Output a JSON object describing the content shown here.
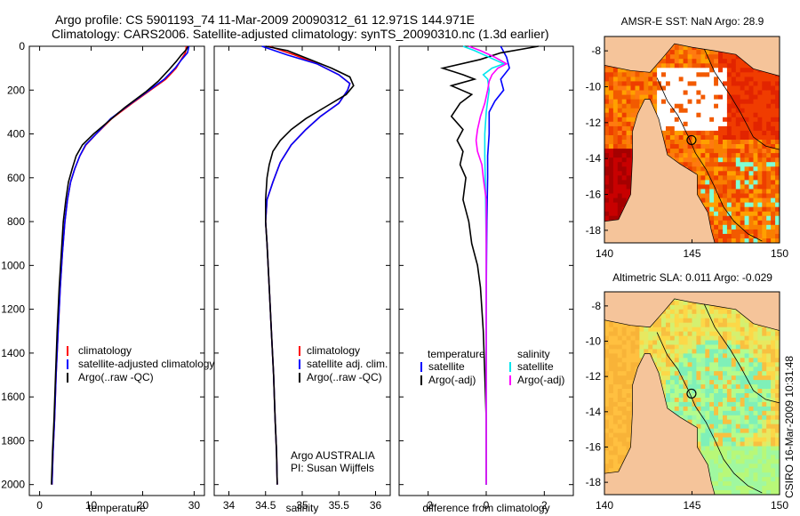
{
  "title_line1": "Argo profile: CS 5901193_74 11-Mar-2009 20090312_61 12.971S 144.971E",
  "title_line2": "Climatology: CARS2006. Satellite-adjusted climatology: synTS_20090310.nc (1.3d earlier)",
  "footer_vertical": "CSIRO 16-Mar-2009 10:31:48",
  "colors": {
    "climatology": "#ff0000",
    "satellite": "#0000ff",
    "argo": "#000000",
    "cyan": "#00e5ee",
    "magenta": "#ff00ff",
    "land": "#f5c49a"
  },
  "chart_data": [
    {
      "id": "temp",
      "type": "line",
      "xlabel": "temperature",
      "xlim": [
        -2,
        32
      ],
      "xticks": [
        0,
        10,
        20,
        30
      ],
      "ylim": [
        0,
        2050
      ],
      "yticks": [
        0,
        200,
        400,
        600,
        800,
        1000,
        1200,
        1400,
        1600,
        1800,
        2000
      ],
      "legend": {
        "position": "lower-left",
        "entries": [
          "climatology",
          "satellite-adjusted climatology",
          "Argo(..raw -QC)"
        ]
      },
      "series": [
        {
          "name": "climatology",
          "color": "#ff0000",
          "points": [
            [
              28.5,
              0
            ],
            [
              28.3,
              30
            ],
            [
              27.5,
              60
            ],
            [
              26.5,
              100
            ],
            [
              24.5,
              150
            ],
            [
              21.5,
              200
            ],
            [
              18,
              260
            ],
            [
              14,
              330
            ],
            [
              11,
              400
            ],
            [
              9,
              450
            ],
            [
              7.8,
              500
            ],
            [
              6.8,
              560
            ],
            [
              6,
              620
            ],
            [
              5.4,
              700
            ],
            [
              4.9,
              800
            ],
            [
              4.4,
              950
            ],
            [
              4,
              1100
            ],
            [
              3.6,
              1300
            ],
            [
              3.2,
              1500
            ],
            [
              2.9,
              1700
            ],
            [
              2.6,
              1850
            ],
            [
              2.4,
              2000
            ]
          ]
        },
        {
          "name": "satellite-adjusted climatology",
          "color": "#0000ff",
          "points": [
            [
              29,
              0
            ],
            [
              28.7,
              30
            ],
            [
              27.6,
              60
            ],
            [
              26.3,
              100
            ],
            [
              24.2,
              150
            ],
            [
              21.3,
              200
            ],
            [
              17.8,
              260
            ],
            [
              13.8,
              330
            ],
            [
              11,
              400
            ],
            [
              8.9,
              450
            ],
            [
              7.8,
              500
            ],
            [
              6.8,
              560
            ],
            [
              6,
              620
            ],
            [
              5.4,
              700
            ],
            [
              4.9,
              800
            ],
            [
              4.4,
              950
            ],
            [
              4,
              1100
            ],
            [
              3.6,
              1300
            ],
            [
              3.2,
              1500
            ],
            [
              2.9,
              1700
            ],
            [
              2.6,
              1850
            ],
            [
              2.4,
              2000
            ]
          ]
        },
        {
          "name": "Argo(..raw -QC)",
          "color": "#000000",
          "points": [
            [
              28.8,
              0
            ],
            [
              28.5,
              15
            ],
            [
              27.5,
              40
            ],
            [
              26.5,
              70
            ],
            [
              25,
              110
            ],
            [
              23,
              160
            ],
            [
              20.5,
              210
            ],
            [
              16.5,
              280
            ],
            [
              13,
              350
            ],
            [
              10.5,
              400
            ],
            [
              8.3,
              450
            ],
            [
              7.1,
              500
            ],
            [
              6.3,
              560
            ],
            [
              5.6,
              620
            ],
            [
              5.1,
              700
            ],
            [
              4.6,
              800
            ],
            [
              4.2,
              950
            ],
            [
              3.8,
              1100
            ],
            [
              3.4,
              1300
            ],
            [
              3.1,
              1500
            ],
            [
              2.8,
              1700
            ],
            [
              2.5,
              1850
            ],
            [
              2.3,
              2000
            ]
          ]
        }
      ]
    },
    {
      "id": "sal",
      "type": "line",
      "xlabel": "salinity",
      "xlim": [
        33.8,
        36.2
      ],
      "xticks": [
        34,
        34.5,
        35,
        35.5,
        36
      ],
      "ylim": [
        0,
        2050
      ],
      "yticks": [
        0,
        200,
        400,
        600,
        800,
        1000,
        1200,
        1400,
        1600,
        1800,
        2000
      ],
      "legend": {
        "position": "lower-right",
        "entries": [
          "climatology",
          "satellite adj. clim.",
          "Argo(..raw -QC)"
        ]
      },
      "annotation": [
        "Argo AUSTRALIA",
        "PI: Susan Wijffels"
      ],
      "series": [
        {
          "name": "climatology",
          "color": "#ff0000",
          "points": [
            [
              34.55,
              0
            ],
            [
              34.9,
              40
            ],
            [
              35.2,
              80
            ],
            [
              35.5,
              130
            ],
            [
              35.65,
              170
            ],
            [
              35.62,
              200
            ],
            [
              35.5,
              260
            ],
            [
              35.25,
              320
            ],
            [
              35.05,
              380
            ],
            [
              34.85,
              450
            ],
            [
              34.7,
              530
            ],
            [
              34.6,
              620
            ],
            [
              34.52,
              700
            ],
            [
              34.5,
              800
            ],
            [
              34.52,
              900
            ],
            [
              34.55,
              1100
            ],
            [
              34.58,
              1300
            ],
            [
              34.61,
              1500
            ],
            [
              34.63,
              1700
            ],
            [
              34.65,
              1850
            ],
            [
              34.66,
              2000
            ]
          ]
        },
        {
          "name": "satellite adj. clim.",
          "color": "#0000ff",
          "points": [
            [
              34.45,
              0
            ],
            [
              34.8,
              40
            ],
            [
              35.2,
              80
            ],
            [
              35.5,
              130
            ],
            [
              35.65,
              170
            ],
            [
              35.62,
              200
            ],
            [
              35.5,
              260
            ],
            [
              35.25,
              320
            ],
            [
              35.05,
              380
            ],
            [
              34.85,
              450
            ],
            [
              34.7,
              530
            ],
            [
              34.6,
              620
            ],
            [
              34.52,
              700
            ],
            [
              34.5,
              800
            ],
            [
              34.52,
              900
            ],
            [
              34.55,
              1100
            ],
            [
              34.58,
              1300
            ],
            [
              34.61,
              1500
            ],
            [
              34.63,
              1700
            ],
            [
              34.65,
              1850
            ],
            [
              34.66,
              2000
            ]
          ]
        },
        {
          "name": "Argo(..raw -QC)",
          "color": "#000000",
          "points": [
            [
              34.5,
              0
            ],
            [
              34.8,
              20
            ],
            [
              35.1,
              60
            ],
            [
              35.4,
              100
            ],
            [
              35.65,
              140
            ],
            [
              35.7,
              180
            ],
            [
              35.6,
              220
            ],
            [
              35.3,
              280
            ],
            [
              35.05,
              330
            ],
            [
              34.85,
              380
            ],
            [
              34.7,
              430
            ],
            [
              34.6,
              480
            ],
            [
              34.55,
              540
            ],
            [
              34.52,
              600
            ],
            [
              34.5,
              700
            ],
            [
              34.5,
              800
            ],
            [
              34.52,
              900
            ],
            [
              34.55,
              1100
            ],
            [
              34.58,
              1300
            ],
            [
              34.61,
              1500
            ],
            [
              34.63,
              1700
            ],
            [
              34.65,
              1850
            ],
            [
              34.66,
              2000
            ]
          ]
        }
      ]
    },
    {
      "id": "diff",
      "type": "line",
      "xlabel": "difference from climatology",
      "xlim": [
        -3,
        3
      ],
      "xticks": [
        -2,
        0,
        2
      ],
      "ylim": [
        0,
        2050
      ],
      "yticks": [
        0,
        200,
        400,
        600,
        800,
        1000,
        1200,
        1400,
        1600,
        1800,
        2000
      ],
      "legend": {
        "position": "lower-center",
        "headers": [
          "temperature",
          "salinity"
        ],
        "entries": [
          "satellite",
          "Argo(-adj)",
          "satellite",
          "Argo(-adj)"
        ]
      },
      "series": [
        {
          "name": "temperature satellite",
          "color": "#0000ff",
          "points": [
            [
              0.5,
              0
            ],
            [
              0.7,
              50
            ],
            [
              0.8,
              100
            ],
            [
              0.5,
              150
            ],
            [
              0.6,
              200
            ],
            [
              0.3,
              250
            ],
            [
              0.1,
              300
            ],
            [
              0.1,
              400
            ],
            [
              0.05,
              500
            ],
            [
              0.05,
              600
            ],
            [
              0.02,
              800
            ],
            [
              0.01,
              1000
            ],
            [
              0,
              1200
            ],
            [
              0,
              1500
            ],
            [
              0,
              1700
            ],
            [
              0,
              1850
            ],
            [
              0,
              2000
            ]
          ]
        },
        {
          "name": "temperature Argo(-adj)",
          "color": "#000000",
          "points": [
            [
              1.8,
              0
            ],
            [
              0.5,
              30
            ],
            [
              -0.2,
              60
            ],
            [
              -1.5,
              100
            ],
            [
              -0.8,
              130
            ],
            [
              -0.4,
              150
            ],
            [
              -1.2,
              180
            ],
            [
              -0.5,
              220
            ],
            [
              -0.9,
              260
            ],
            [
              -1.2,
              320
            ],
            [
              -0.8,
              380
            ],
            [
              -1.0,
              430
            ],
            [
              -0.8,
              480
            ],
            [
              -0.9,
              540
            ],
            [
              -0.7,
              600
            ],
            [
              -0.8,
              700
            ],
            [
              -0.6,
              800
            ],
            [
              -0.5,
              900
            ],
            [
              -0.3,
              1000
            ],
            [
              -0.2,
              1100
            ],
            [
              -0.1,
              1300
            ],
            [
              -0.05,
              1500
            ],
            [
              0,
              1700
            ],
            [
              0,
              1850
            ],
            [
              0,
              2000
            ]
          ]
        },
        {
          "name": "salinity satellite",
          "color": "#00e5ee",
          "points": [
            [
              -0.8,
              0
            ],
            [
              -0.4,
              20
            ],
            [
              0.1,
              50
            ],
            [
              0.6,
              80
            ],
            [
              0.2,
              100
            ],
            [
              -0.1,
              130
            ],
            [
              0.05,
              150
            ],
            [
              0.1,
              200
            ],
            [
              0.05,
              250
            ],
            [
              0.0,
              300
            ],
            [
              -0.05,
              400
            ],
            [
              -0.05,
              500
            ],
            [
              -0.02,
              700
            ],
            [
              0,
              900
            ],
            [
              0,
              1200
            ],
            [
              0,
              1500
            ],
            [
              0,
              1800
            ],
            [
              0,
              2000
            ]
          ]
        },
        {
          "name": "salinity Argo(-adj)",
          "color": "#ff00ff",
          "points": [
            [
              -0.6,
              0
            ],
            [
              -0.2,
              20
            ],
            [
              0.3,
              50
            ],
            [
              0.7,
              80
            ],
            [
              0.4,
              100
            ],
            [
              0.2,
              130
            ],
            [
              0.1,
              160
            ],
            [
              0.05,
              200
            ],
            [
              -0.05,
              260
            ],
            [
              -0.2,
              320
            ],
            [
              -0.3,
              380
            ],
            [
              -0.35,
              430
            ],
            [
              -0.3,
              480
            ],
            [
              -0.15,
              540
            ],
            [
              -0.1,
              600
            ],
            [
              0,
              700
            ],
            [
              0,
              800
            ],
            [
              0,
              900
            ],
            [
              0,
              1100
            ],
            [
              0,
              1300
            ],
            [
              0,
              1500
            ],
            [
              0,
              1800
            ],
            [
              0,
              2000
            ]
          ]
        }
      ]
    },
    {
      "id": "sst_map",
      "type": "heatmap",
      "title": "AMSR-E SST: NaN Argo: 28.9",
      "xlim": [
        140,
        150
      ],
      "xticks": [
        140,
        145,
        150
      ],
      "ylim": [
        -18.7,
        -7.2
      ],
      "yticks": [
        -8,
        -10,
        -12,
        -14,
        -16,
        -18
      ],
      "argo_position": {
        "lon": 144.971,
        "lat": -12.971
      }
    },
    {
      "id": "sla_map",
      "type": "heatmap",
      "title": "Altimetric SLA: 0.011 Argo: -0.029",
      "xlim": [
        140,
        150
      ],
      "xticks": [
        140,
        145,
        150
      ],
      "ylim": [
        -18.7,
        -7.2
      ],
      "yticks": [
        -8,
        -10,
        -12,
        -14,
        -16,
        -18
      ],
      "argo_position": {
        "lon": 144.971,
        "lat": -12.971
      }
    }
  ]
}
